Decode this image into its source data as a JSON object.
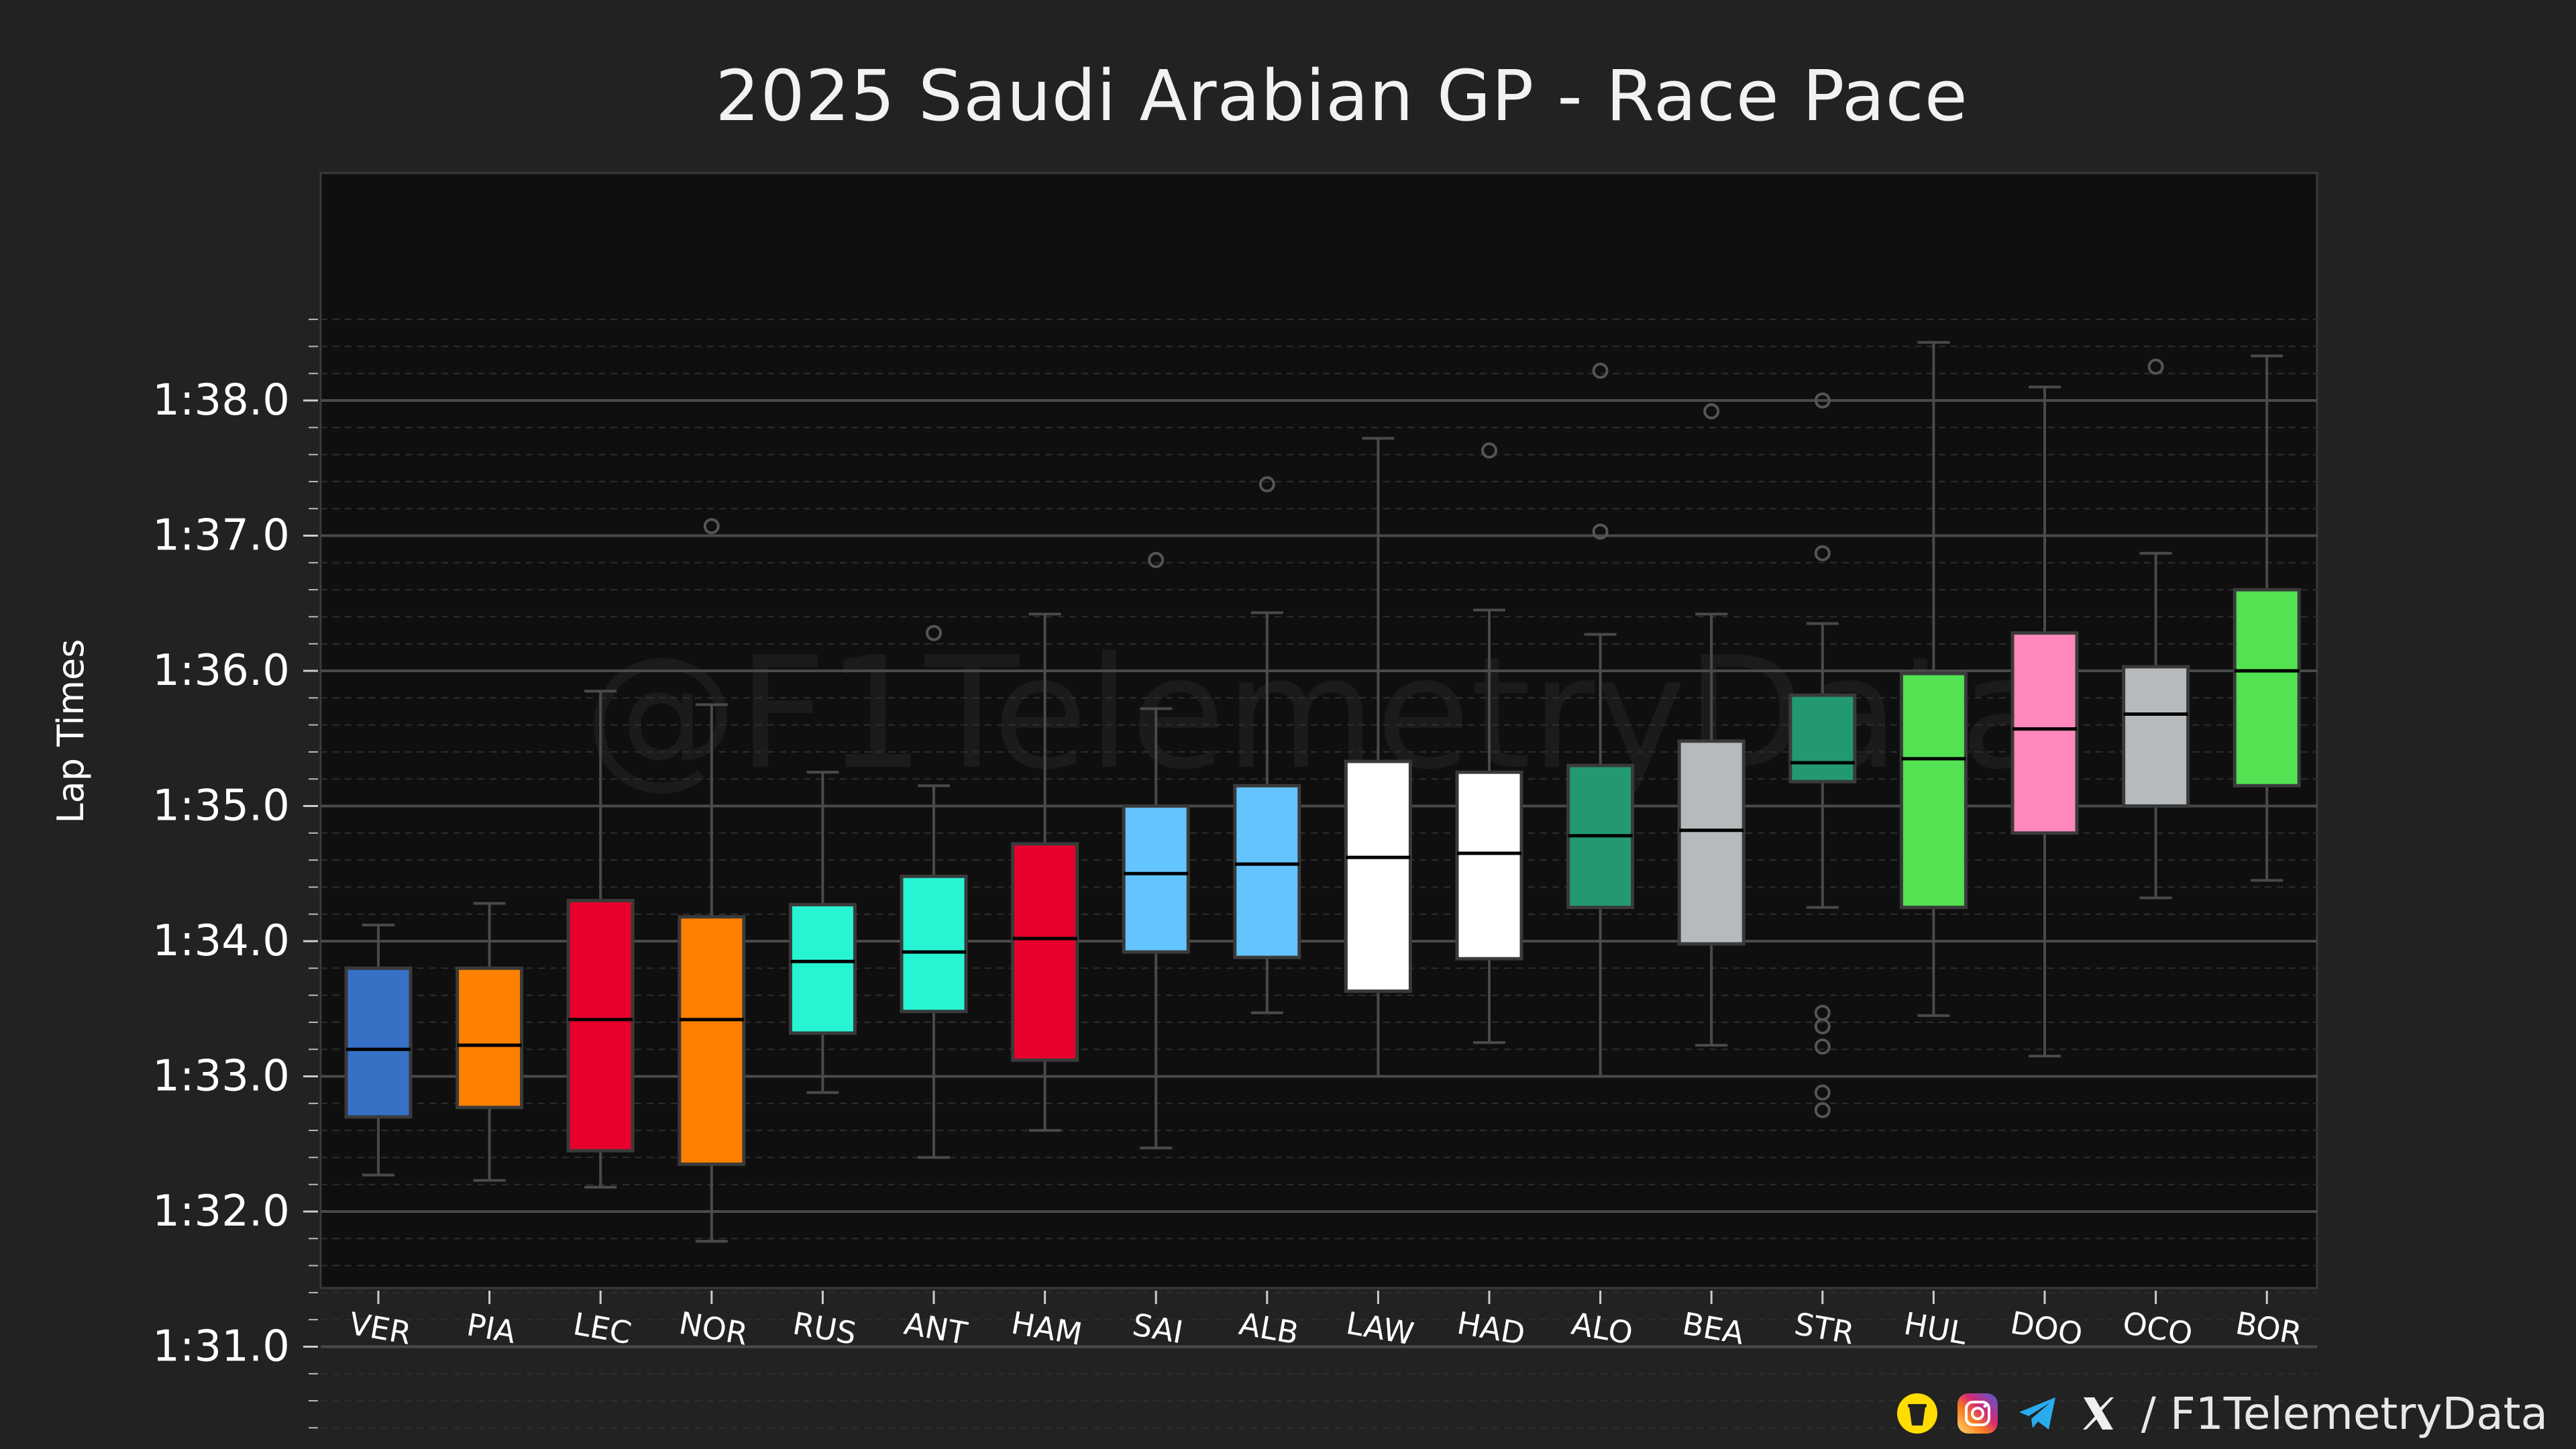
{
  "chart_data": {
    "type": "box",
    "title": "2025 Saudi Arabian GP - Race Pace",
    "xlabel": "",
    "ylabel": "Lap Times",
    "y_units": "seconds",
    "y_ticks": [
      {
        "value": 91,
        "label": "1:31.0"
      },
      {
        "value": 92,
        "label": "1:32.0"
      },
      {
        "value": 93,
        "label": "1:33.0"
      },
      {
        "value": 94,
        "label": "1:34.0"
      },
      {
        "value": 95,
        "label": "1:35.0"
      },
      {
        "value": 96,
        "label": "1:36.0"
      },
      {
        "value": 97,
        "label": "1:37.0"
      },
      {
        "value": 98,
        "label": "1:38.0"
      }
    ],
    "ylim": [
      90.35,
      98.6
    ],
    "grid": true,
    "watermark": "@F1TelemetryData",
    "drivers": [
      {
        "name": "VER",
        "color": "#3671C6",
        "whisker_low": 92.27,
        "q1": 92.7,
        "median": 93.2,
        "q3": 93.8,
        "whisker_high": 94.12,
        "outliers": []
      },
      {
        "name": "PIA",
        "color": "#FF8000",
        "whisker_low": 92.23,
        "q1": 92.77,
        "median": 93.23,
        "q3": 93.8,
        "whisker_high": 94.28,
        "outliers": []
      },
      {
        "name": "LEC",
        "color": "#E8002D",
        "whisker_low": 92.18,
        "q1": 92.45,
        "median": 93.42,
        "q3": 94.3,
        "whisker_high": 95.85,
        "outliers": []
      },
      {
        "name": "NOR",
        "color": "#FF8000",
        "whisker_low": 91.78,
        "q1": 92.35,
        "median": 93.42,
        "q3": 94.18,
        "whisker_high": 95.75,
        "outliers": [
          97.07
        ]
      },
      {
        "name": "RUS",
        "color": "#27F4D2",
        "whisker_low": 92.88,
        "q1": 93.32,
        "median": 93.85,
        "q3": 94.27,
        "whisker_high": 95.25,
        "outliers": []
      },
      {
        "name": "ANT",
        "color": "#27F4D2",
        "whisker_low": 92.4,
        "q1": 93.48,
        "median": 93.92,
        "q3": 94.48,
        "whisker_high": 95.15,
        "outliers": [
          96.28
        ]
      },
      {
        "name": "HAM",
        "color": "#E8002D",
        "whisker_low": 92.6,
        "q1": 93.12,
        "median": 94.02,
        "q3": 94.72,
        "whisker_high": 96.42,
        "outliers": []
      },
      {
        "name": "SAI",
        "color": "#64C4FF",
        "whisker_low": 92.47,
        "q1": 93.92,
        "median": 94.5,
        "q3": 95.0,
        "whisker_high": 95.72,
        "outliers": [
          96.82
        ]
      },
      {
        "name": "ALB",
        "color": "#64C4FF",
        "whisker_low": 93.47,
        "q1": 93.88,
        "median": 94.57,
        "q3": 95.15,
        "whisker_high": 96.43,
        "outliers": [
          97.38
        ]
      },
      {
        "name": "LAW",
        "color": "#FFFFFF",
        "whisker_low": 93.0,
        "q1": 93.63,
        "median": 94.62,
        "q3": 95.33,
        "whisker_high": 97.72,
        "outliers": []
      },
      {
        "name": "HAD",
        "color": "#FFFFFF",
        "whisker_low": 93.25,
        "q1": 93.87,
        "median": 94.65,
        "q3": 95.25,
        "whisker_high": 96.45,
        "outliers": [
          97.63
        ]
      },
      {
        "name": "ALO",
        "color": "#229971",
        "whisker_low": 93.0,
        "q1": 94.25,
        "median": 94.78,
        "q3": 95.3,
        "whisker_high": 96.27,
        "outliers": [
          97.03,
          98.22
        ]
      },
      {
        "name": "BEA",
        "color": "#B6BABD",
        "whisker_low": 93.23,
        "q1": 93.98,
        "median": 94.82,
        "q3": 95.48,
        "whisker_high": 96.42,
        "outliers": [
          97.92
        ]
      },
      {
        "name": "STR",
        "color": "#229971",
        "whisker_low": 94.25,
        "q1": 95.18,
        "median": 95.32,
        "q3": 95.82,
        "whisker_high": 96.35,
        "outliers": [
          92.75,
          92.88,
          93.22,
          93.37,
          93.47,
          96.87,
          98.0
        ]
      },
      {
        "name": "HUL",
        "color": "#52E252",
        "whisker_low": 93.45,
        "q1": 94.25,
        "median": 95.35,
        "q3": 95.98,
        "whisker_high": 98.43,
        "outliers": []
      },
      {
        "name": "DOO",
        "color": "#FF87BC",
        "whisker_low": 93.15,
        "q1": 94.8,
        "median": 95.57,
        "q3": 96.28,
        "whisker_high": 98.1,
        "outliers": []
      },
      {
        "name": "OCO",
        "color": "#B6BABD",
        "whisker_low": 94.32,
        "q1": 95.0,
        "median": 95.68,
        "q3": 96.03,
        "whisker_high": 96.87,
        "outliers": [
          98.25
        ]
      },
      {
        "name": "BOR",
        "color": "#52E252",
        "whisker_low": 94.45,
        "q1": 95.15,
        "median": 96.0,
        "q3": 96.6,
        "whisker_high": 98.33,
        "outliers": []
      }
    ]
  },
  "footer": {
    "handle": "/ F1TelemetryData",
    "icons": [
      "buymeacoffee-icon",
      "instagram-icon",
      "telegram-icon",
      "x-icon"
    ]
  }
}
